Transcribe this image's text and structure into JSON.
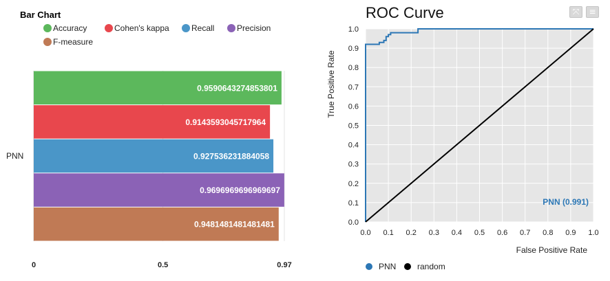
{
  "chart_data": [
    {
      "type": "bar",
      "orientation": "horizontal",
      "title": "Bar Chart",
      "categories": [
        "PNN"
      ],
      "series": [
        {
          "name": "Accuracy",
          "values": [
            0.9590643274853801
          ],
          "label": "0.9590643274853801",
          "color": "#5cb85c"
        },
        {
          "name": "Cohen's kappa",
          "values": [
            0.9143593045717964
          ],
          "label": "0.9143593045717964",
          "color": "#e8474d"
        },
        {
          "name": "Recall",
          "values": [
            0.927536231884058
          ],
          "label": "0.927536231884058",
          "color": "#4a96c8"
        },
        {
          "name": "Precision",
          "values": [
            0.9696969696969697
          ],
          "label": "0.9696969696969697",
          "color": "#8b62b6"
        },
        {
          "name": "F-measure",
          "values": [
            0.9481481481481481
          ],
          "label": "0.9481481481481481",
          "color": "#c07a55"
        }
      ],
      "xlim": [
        0,
        0.97
      ],
      "xticks": [
        "0",
        "0.5",
        "0.97"
      ],
      "legend": "top",
      "grid": true
    },
    {
      "type": "line",
      "title": "ROC Curve",
      "xlabel": "False Positive Rate",
      "ylabel": "True Positive Rate",
      "xlim": [
        0,
        1
      ],
      "ylim": [
        0,
        1
      ],
      "xticks": [
        "0.0",
        "0.1",
        "0.2",
        "0.3",
        "0.4",
        "0.5",
        "0.6",
        "0.7",
        "0.8",
        "0.9",
        "1.0"
      ],
      "yticks": [
        "0.0",
        "0.1",
        "0.2",
        "0.3",
        "0.4",
        "0.5",
        "0.6",
        "0.7",
        "0.8",
        "0.9",
        "1.0"
      ],
      "grid": true,
      "legend": "bottom-left",
      "annotation": "PNN (0.991)",
      "series": [
        {
          "name": "PNN",
          "color": "#2c77b5",
          "x": [
            0,
            0,
            0.06,
            0.06,
            0.08,
            0.08,
            0.09,
            0.09,
            0.1,
            0.1,
            0.11,
            0.11,
            0.23,
            0.23,
            1.0
          ],
          "y": [
            0,
            0.92,
            0.92,
            0.93,
            0.93,
            0.94,
            0.94,
            0.96,
            0.96,
            0.97,
            0.97,
            0.98,
            0.98,
            1.0,
            1.0
          ]
        },
        {
          "name": "random",
          "color": "#000000",
          "x": [
            0,
            1
          ],
          "y": [
            0,
            1
          ]
        }
      ]
    }
  ]
}
